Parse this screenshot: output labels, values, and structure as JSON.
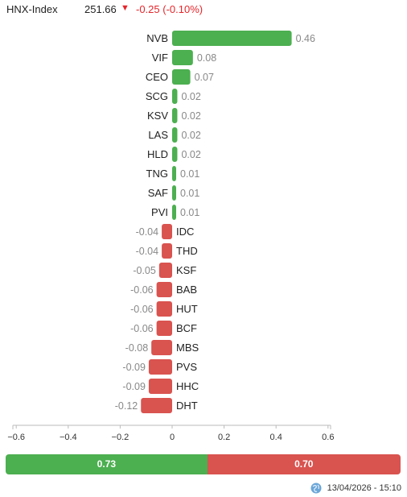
{
  "header": {
    "index_name": "HNX-Index",
    "index_value": "251.66",
    "direction_icon": "triangle-down-icon",
    "change_text": "-0.25 (-0.10%)",
    "change_color": "#e5262b"
  },
  "chart_data": {
    "type": "bar",
    "orientation": "horizontal",
    "categories": [
      "NVB",
      "VIF",
      "CEO",
      "SCG",
      "KSV",
      "LAS",
      "HLD",
      "TNG",
      "SAF",
      "PVI",
      "IDC",
      "THD",
      "KSF",
      "BAB",
      "HUT",
      "BCF",
      "MBS",
      "PVS",
      "HHC",
      "DHT"
    ],
    "values": [
      0.46,
      0.08,
      0.07,
      0.02,
      0.02,
      0.02,
      0.02,
      0.01,
      0.01,
      0.01,
      -0.04,
      -0.04,
      -0.05,
      -0.06,
      -0.06,
      -0.06,
      -0.08,
      -0.09,
      -0.09,
      -0.12
    ],
    "value_labels": [
      "0.46",
      "0.08",
      "0.07",
      "0.02",
      "0.02",
      "0.02",
      "0.02",
      "0.01",
      "0.01",
      "0.01",
      "-0.04",
      "-0.04",
      "-0.05",
      "-0.06",
      "-0.06",
      "-0.06",
      "-0.08",
      "-0.09",
      "-0.09",
      "-0.12"
    ],
    "xlim": [
      -0.6,
      0.6
    ],
    "xticks": [
      -0.6,
      -0.4,
      -0.2,
      0,
      0.2,
      0.4,
      0.6
    ],
    "xtick_labels": [
      "−0.6",
      "−0.4",
      "−0.2",
      "0",
      "0.2",
      "0.4",
      "0.6"
    ],
    "positive_color": "#4caf50",
    "negative_color": "#d9534f",
    "grid": false
  },
  "summary": {
    "positive_total": 0.73,
    "positive_label": "0.73",
    "negative_total": 0.7,
    "negative_label": "0.70",
    "positive_color": "#4caf50",
    "negative_color": "#d9534f"
  },
  "footer": {
    "timestamp": "13/04/2026 - 15:10",
    "icon": "refresh-globe-icon"
  }
}
